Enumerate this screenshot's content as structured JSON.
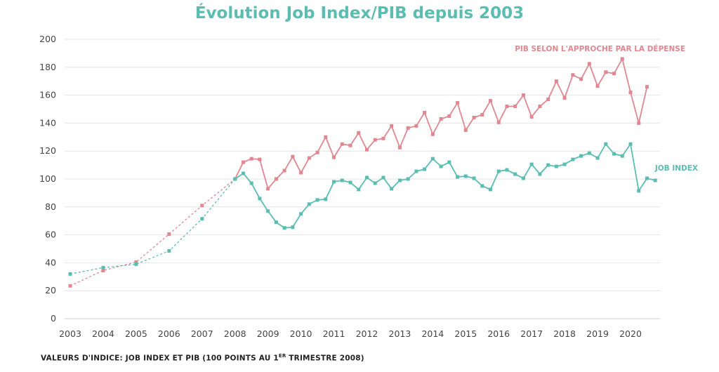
{
  "chart_data": {
    "type": "line",
    "title": "Évolution Job Index/PIB depuis 2003",
    "footnote": {
      "text": "VALEURS D'INDICE: JOB INDEX ET PIB (100 POINTS AU 1",
      "sup": "ER",
      "text_end": " TRIMESTRE 2008)"
    },
    "ylim": [
      0,
      200
    ],
    "yticks": [
      0,
      20,
      40,
      60,
      80,
      100,
      120,
      140,
      160,
      180,
      200
    ],
    "xticks": [
      "2003",
      "2004",
      "2005",
      "2006",
      "2007",
      "2008",
      "2009",
      "2010",
      "2011",
      "2012",
      "2013",
      "2014",
      "2015",
      "2016",
      "2017",
      "2018",
      "2019",
      "2020"
    ],
    "grid": true,
    "series": [
      {
        "name": "PIB SELON L'APPROCHE PAR LA DÉPENSE",
        "color": "#e0878f",
        "annual_dashed": {
          "x": [
            2003,
            2004,
            2005,
            2006,
            2007,
            2008
          ],
          "y": [
            23.5,
            34.5,
            40.5,
            60.5,
            81,
            100
          ]
        },
        "quarterly_start": 2008,
        "quarterly": [
          100,
          112,
          114.5,
          114,
          93,
          100,
          106,
          116,
          104.5,
          115,
          119,
          130,
          115.5,
          125,
          124,
          133,
          121,
          128,
          129,
          138,
          122.5,
          136.5,
          138,
          147.5,
          132,
          143,
          145,
          154.5,
          135,
          144,
          146,
          156,
          140.5,
          152,
          152,
          160,
          144.5,
          152,
          157,
          170,
          158,
          174.5,
          171.5,
          182.5,
          166.5,
          176.5,
          175.5,
          186,
          162,
          140,
          166
        ]
      },
      {
        "name": "JOB INDEX",
        "color": "#5bbdb2",
        "annual_dashed": {
          "x": [
            2003,
            2004,
            2005,
            2006,
            2007,
            2008
          ],
          "y": [
            32,
            36.5,
            39,
            48.5,
            71.5,
            100
          ]
        },
        "quarterly_start": 2008,
        "quarterly": [
          100,
          104,
          97,
          86,
          77,
          69,
          65,
          65.5,
          75,
          82,
          85,
          85.5,
          98,
          99,
          97.5,
          92.5,
          101,
          97,
          101,
          93,
          99,
          100,
          105.5,
          107,
          114.5,
          109,
          112,
          101.5,
          102,
          100.5,
          95,
          92.5,
          105.5,
          106.5,
          103.5,
          100.5,
          110.5,
          103.5,
          110,
          109,
          110.5,
          114,
          116.5,
          118.5,
          115,
          125,
          118,
          116.5,
          125,
          91.5,
          100.5,
          99
        ]
      }
    ]
  }
}
